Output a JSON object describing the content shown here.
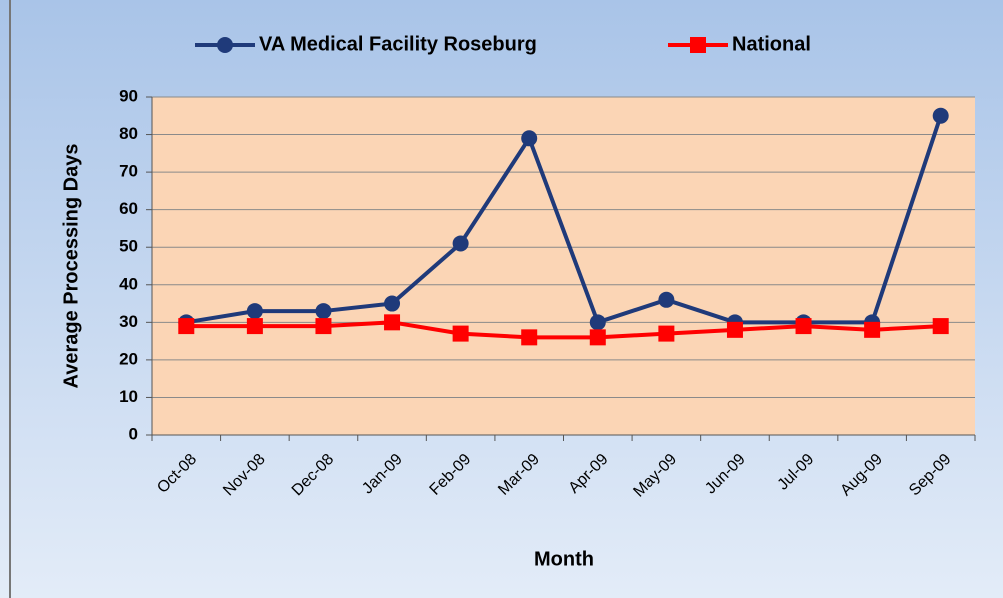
{
  "chart_data": {
    "type": "line",
    "x_label": "Month",
    "y_label": "Average Processing  Days",
    "categories": [
      "Oct-08",
      "Nov-08",
      "Dec-08",
      "Jan-09",
      "Feb-09",
      "Mar-09",
      "Apr-09",
      "May-09",
      "Jun-09",
      "Jul-09",
      "Aug-09",
      "Sep-09"
    ],
    "series": [
      {
        "name": "VA Medical Facility Roseburg",
        "color": "#1f3a7a",
        "marker": "circle",
        "values": [
          30,
          33,
          33,
          35,
          51,
          79,
          30,
          36,
          30,
          30,
          30,
          85
        ]
      },
      {
        "name": "National",
        "color": "#ff0000",
        "marker": "square",
        "values": [
          29,
          29,
          29,
          30,
          27,
          26,
          26,
          27,
          28,
          29,
          28,
          29
        ]
      }
    ],
    "ylim": [
      0,
      90
    ],
    "yticks": [
      0,
      10,
      20,
      30,
      40,
      50,
      60,
      70,
      80,
      90
    ],
    "grid": true,
    "legend": "top"
  }
}
